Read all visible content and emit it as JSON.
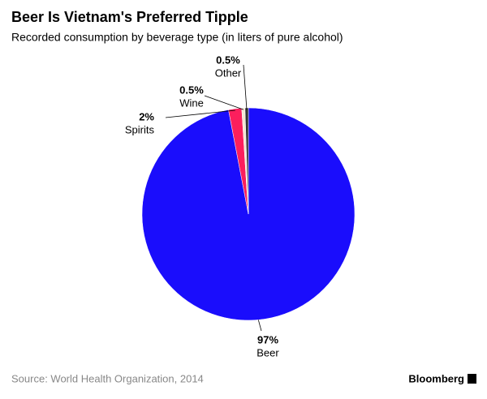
{
  "chart_data": {
    "type": "pie",
    "title": "Beer Is Vietnam's Preferred Tipple",
    "subtitle": "Recorded consumption by beverage type (in liters of pure alcohol)",
    "categories": [
      "Beer",
      "Spirits",
      "Wine",
      "Other"
    ],
    "values": [
      97,
      2,
      0.5,
      0.5
    ],
    "value_labels": [
      "97%",
      "2%",
      "0.5%",
      "0.5%"
    ],
    "colors": [
      "#1a0dfc",
      "#fb1f5d",
      "#f3e8d4",
      "#333333"
    ],
    "source": "Source: World Health Organization, 2014",
    "brand": "Bloomberg"
  }
}
